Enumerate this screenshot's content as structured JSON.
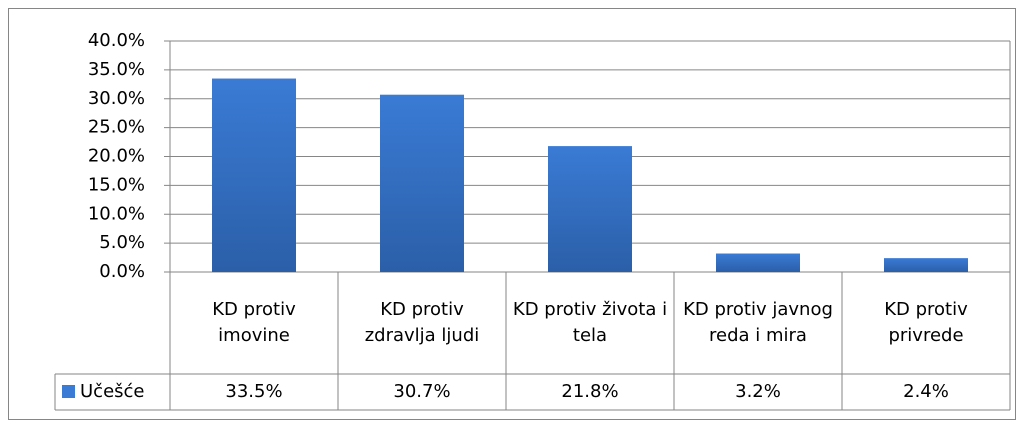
{
  "chart_data": {
    "type": "bar",
    "categories": [
      "KD protiv imovine",
      "KD protiv zdravlja ljudi",
      "KD protiv života i tela",
      "KD protiv javnog reda i mira",
      "KD protiv privrede"
    ],
    "series": [
      {
        "name": "Učešće",
        "color": "#3a7bd5",
        "values": [
          33.5,
          30.7,
          21.8,
          3.2,
          2.4
        ],
        "value_labels": [
          "33.5%",
          "30.7%",
          "21.8%",
          "3.2%",
          "2.4%"
        ]
      }
    ],
    "ylim": [
      0,
      40
    ],
    "yticks": [
      {
        "value": 0,
        "label": "0.0%"
      },
      {
        "value": 5,
        "label": "5.0%"
      },
      {
        "value": 10,
        "label": "10.0%"
      },
      {
        "value": 15,
        "label": "15.0%"
      },
      {
        "value": 20,
        "label": "20.0%"
      },
      {
        "value": 25,
        "label": "25.0%"
      },
      {
        "value": 30,
        "label": "30.0%"
      },
      {
        "value": 35,
        "label": "35.0%"
      },
      {
        "value": 40,
        "label": "40.0%"
      }
    ],
    "grid": true,
    "data_table": true
  }
}
